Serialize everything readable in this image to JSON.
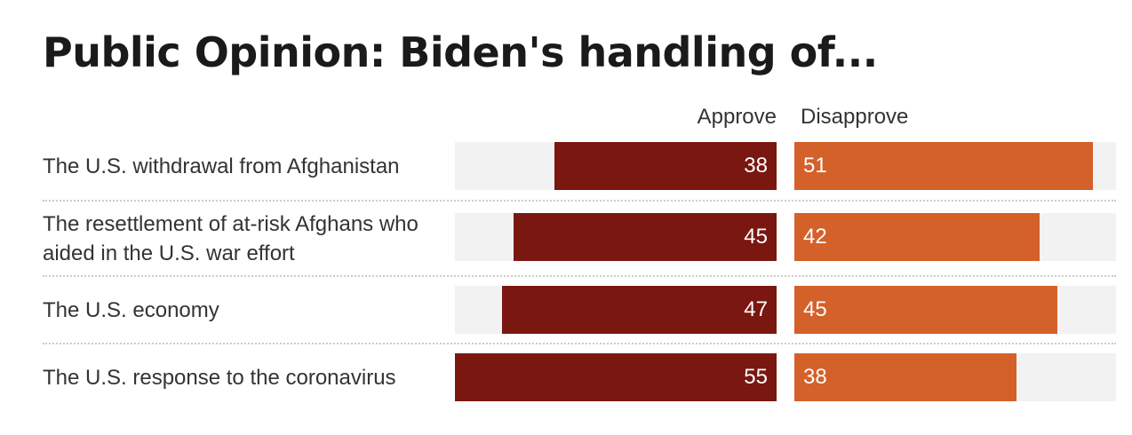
{
  "chart_data": {
    "type": "bar",
    "title": "Public Opinion: Biden's handling of...",
    "categories": [
      "The U.S. withdrawal from Afghanistan",
      "The resettlement of at-risk Afghans who aided in the U.S. war effort",
      "The U.S. economy",
      "The U.S. response to the coronavirus"
    ],
    "series": [
      {
        "name": "Approve",
        "values": [
          38,
          45,
          47,
          55
        ],
        "color": "#7a1711"
      },
      {
        "name": "Disapprove",
        "values": [
          51,
          42,
          45,
          38
        ],
        "color": "#d4602a"
      }
    ],
    "xlim": [
      0,
      55
    ],
    "track_color": "#f2f2f2",
    "layout": "diverging horizontal bars, approve to left of center, disapprove to right"
  }
}
